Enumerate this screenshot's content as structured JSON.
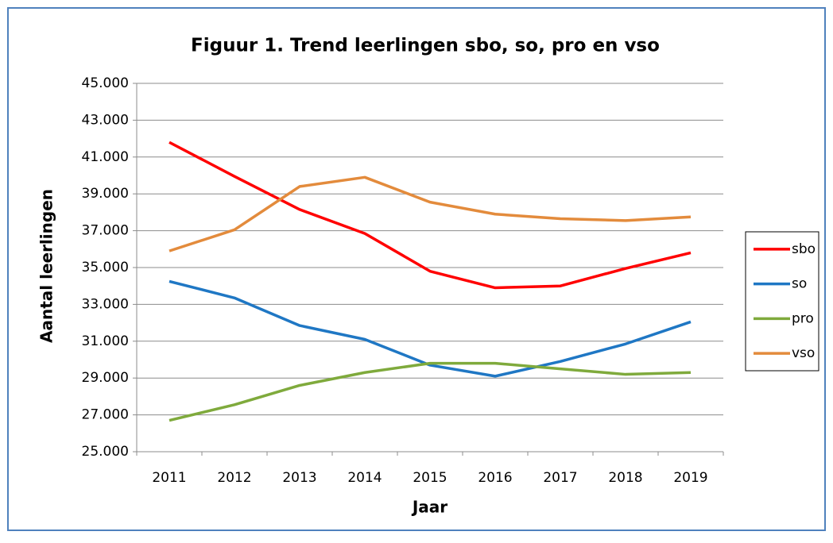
{
  "chart_data": {
    "type": "line",
    "title": "Figuur 1. Trend leerlingen sbo, so, pro en vso",
    "x_label": "Jaar",
    "y_label": "Aantal leerlingen",
    "categories": [
      "2011",
      "2012",
      "2013",
      "2014",
      "2015",
      "2016",
      "2017",
      "2018",
      "2019"
    ],
    "series": [
      {
        "name": "sbo",
        "color": "#ff0000",
        "values": [
          41800,
          39950,
          38150,
          36850,
          34800,
          33900,
          34000,
          34950,
          35800
        ]
      },
      {
        "name": "so",
        "color": "#1f77c4",
        "values": [
          34250,
          33350,
          31850,
          31100,
          29700,
          29100,
          29900,
          30850,
          32050
        ]
      },
      {
        "name": "pro",
        "color": "#7faa3c",
        "values": [
          26700,
          27550,
          28600,
          29300,
          29800,
          29800,
          29500,
          29200,
          29300
        ]
      },
      {
        "name": "vso",
        "color": "#e38b3c",
        "values": [
          35900,
          37050,
          39400,
          39900,
          38550,
          37900,
          37650,
          37550,
          37750
        ]
      }
    ],
    "ylim": [
      25000,
      45000
    ],
    "yticks": [
      {
        "value": 25000,
        "label": "25.000"
      },
      {
        "value": 27000,
        "label": "27.000"
      },
      {
        "value": 29000,
        "label": "29.000"
      },
      {
        "value": 31000,
        "label": "31.000"
      },
      {
        "value": 33000,
        "label": "33.000"
      },
      {
        "value": 35000,
        "label": "35.000"
      },
      {
        "value": 37000,
        "label": "37.000"
      },
      {
        "value": 39000,
        "label": "39.000"
      },
      {
        "value": 41000,
        "label": "41.000"
      },
      {
        "value": 43000,
        "label": "43.000"
      },
      {
        "value": 45000,
        "label": "45.000"
      }
    ],
    "grid": true,
    "legend": "right"
  }
}
